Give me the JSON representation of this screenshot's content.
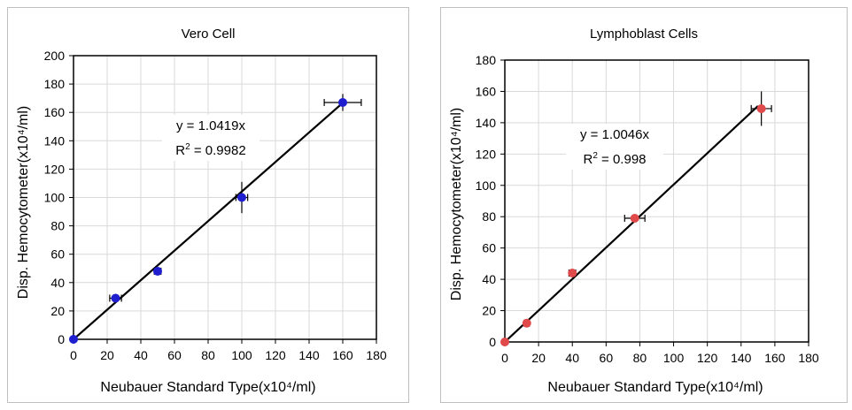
{
  "chart_data": [
    {
      "type": "scatter",
      "title": "Vero Cell",
      "xlabel": "Neubauer Standard Type(x10⁴/ml)",
      "ylabel": "Disp. Hemocytometer(x10⁴/ml)",
      "xlim": [
        0,
        180
      ],
      "ylim": [
        0,
        200
      ],
      "xticks": [
        0,
        20,
        40,
        60,
        80,
        100,
        120,
        140,
        160,
        180
      ],
      "yticks": [
        0,
        20,
        40,
        60,
        80,
        100,
        120,
        140,
        160,
        180,
        200
      ],
      "grid": true,
      "marker_color": "#1f1fd0",
      "points": [
        {
          "x": 0,
          "y": 0,
          "xerr": 0,
          "yerr": 0
        },
        {
          "x": 25,
          "y": 29,
          "xerr": 3.5,
          "yerr": 3
        },
        {
          "x": 50,
          "y": 48,
          "xerr": 2,
          "yerr": 2
        },
        {
          "x": 100,
          "y": 100,
          "xerr": 3.5,
          "yerr": 11
        },
        {
          "x": 160,
          "y": 167,
          "xerr": 11,
          "yerr": 6
        }
      ],
      "fit": {
        "slope": 1.0419,
        "x_range": [
          0,
          159
        ]
      },
      "equation": "y = 1.0419x",
      "r2_label": "R",
      "r2_value": " = 0.9982"
    },
    {
      "type": "scatter",
      "title": "Lymphoblast Cells",
      "xlabel": "Neubauer Standard Type(x10⁴/ml)",
      "ylabel": "Disp. Hemocytometer(x10⁴/ml)",
      "xlim": [
        0,
        180
      ],
      "ylim": [
        0,
        180
      ],
      "xticks": [
        0,
        20,
        40,
        60,
        80,
        100,
        120,
        140,
        160,
        180
      ],
      "yticks": [
        0,
        20,
        40,
        60,
        80,
        100,
        120,
        140,
        160,
        180
      ],
      "grid": true,
      "marker_color": "#e04a4a",
      "points": [
        {
          "x": 0,
          "y": 0,
          "xerr": 0,
          "yerr": 0
        },
        {
          "x": 13,
          "y": 12,
          "xerr": 1.5,
          "yerr": 2
        },
        {
          "x": 40,
          "y": 44,
          "xerr": 2,
          "yerr": 2
        },
        {
          "x": 77,
          "y": 79,
          "xerr": 6,
          "yerr": 2
        },
        {
          "x": 152,
          "y": 149,
          "xerr": 6,
          "yerr": 11
        }
      ],
      "fit": {
        "slope": 1.0046,
        "x_range": [
          0,
          150
        ]
      },
      "equation": "y = 1.0046x",
      "r2_label": "R",
      "r2_value": " = 0.998"
    }
  ]
}
